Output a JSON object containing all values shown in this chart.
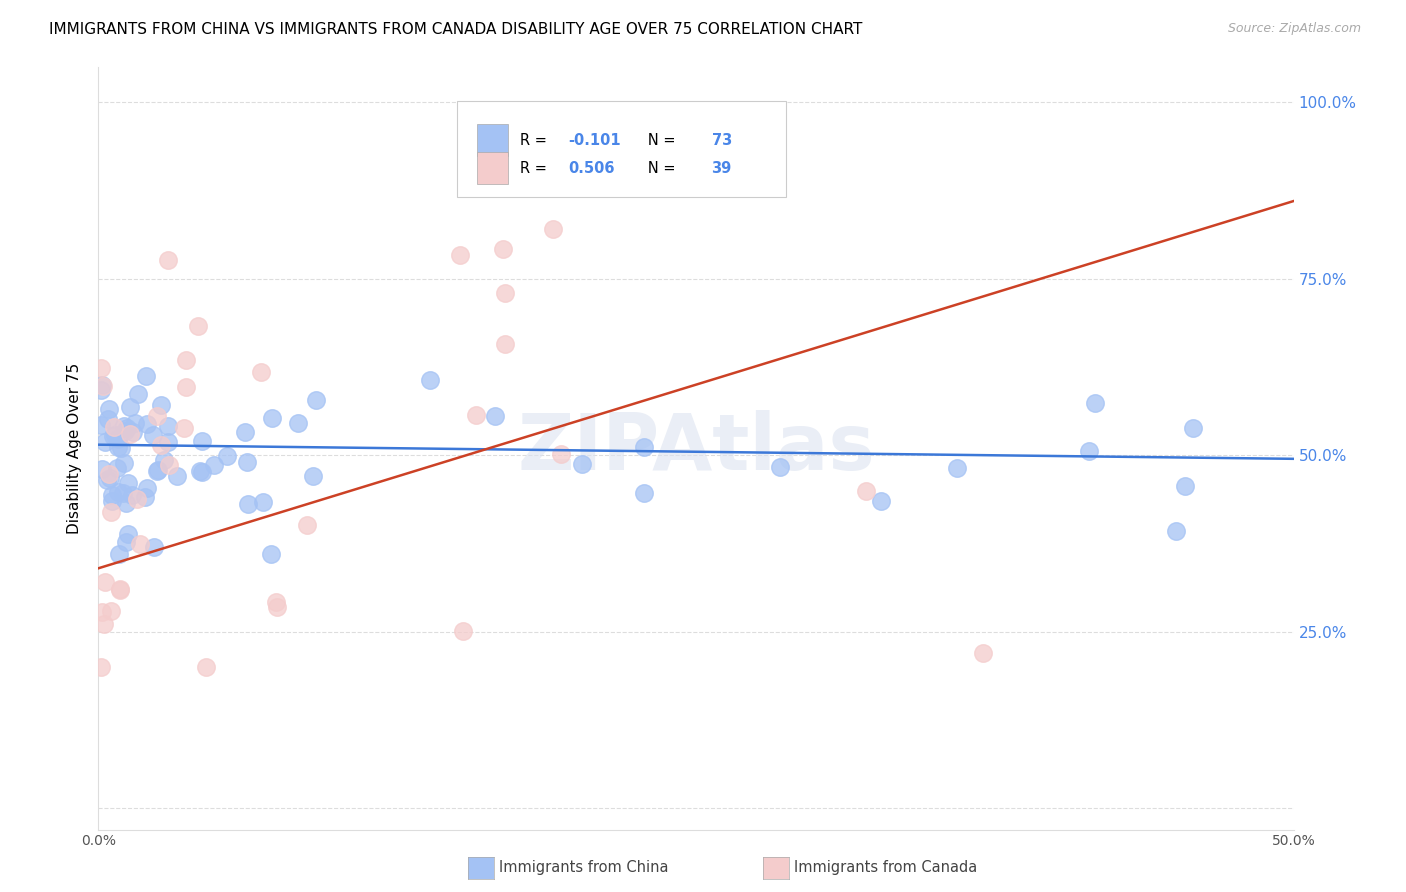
{
  "title": "IMMIGRANTS FROM CHINA VS IMMIGRANTS FROM CANADA DISABILITY AGE OVER 75 CORRELATION CHART",
  "source": "Source: ZipAtlas.com",
  "ylabel": "Disability Age Over 75",
  "xlabel_china": "Immigrants from China",
  "xlabel_canada": "Immigrants from Canada",
  "xmin": 0.0,
  "xmax": 0.5,
  "ymin": 0.0,
  "ymax": 1.05,
  "yticks": [
    0.0,
    0.25,
    0.5,
    0.75,
    1.0
  ],
  "ytick_labels_right": [
    "",
    "25.0%",
    "50.0%",
    "75.0%",
    "100.0%"
  ],
  "xticks": [
    0.0,
    0.1,
    0.2,
    0.3,
    0.4,
    0.5
  ],
  "xtick_labels": [
    "0.0%",
    "",
    "",
    "",
    "",
    "50.0%"
  ],
  "china_color": "#a4c2f4",
  "canada_color": "#f4cccc",
  "line_china_color": "#3c78d8",
  "line_canada_color": "#cc4125",
  "R_china": -0.101,
  "N_china": 73,
  "R_canada": 0.506,
  "N_canada": 39,
  "watermark": "ZIPAtlas",
  "right_tick_color": "#4a86e8",
  "grid_color": "#dddddd",
  "background_color": "#ffffff"
}
